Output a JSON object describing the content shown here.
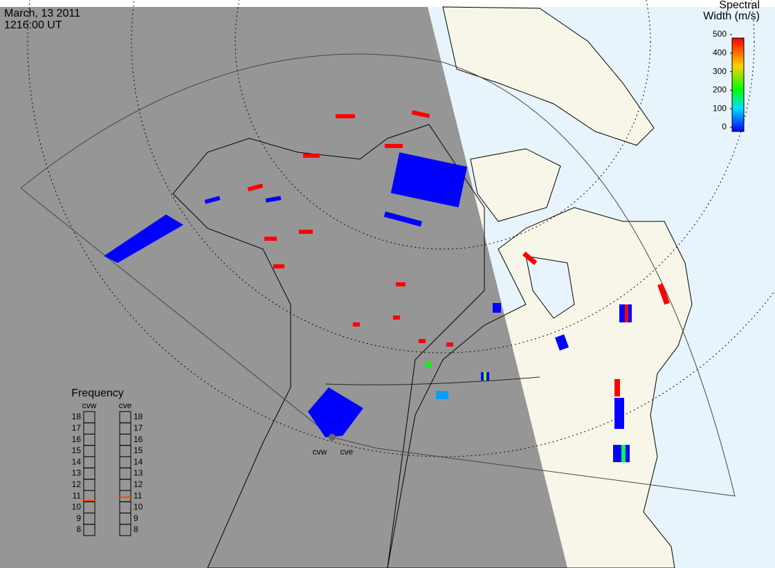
{
  "header": {
    "date": "March, 13 2011",
    "time": "1216:00 UT"
  },
  "colorbar": {
    "title": [
      "Spectral",
      "Width (m/s)"
    ],
    "range": [
      0,
      500
    ],
    "ticks": [
      0,
      100,
      200,
      300,
      400,
      500
    ]
  },
  "frequency": {
    "title": "Frequency",
    "range": [
      8,
      18
    ],
    "ticks": [
      8,
      9,
      10,
      11,
      12,
      13,
      14,
      15,
      16,
      17,
      18
    ],
    "radars": [
      {
        "name": "cvw",
        "value": 10.6
      },
      {
        "name": "cve",
        "value": 10.9
      }
    ]
  }
}
